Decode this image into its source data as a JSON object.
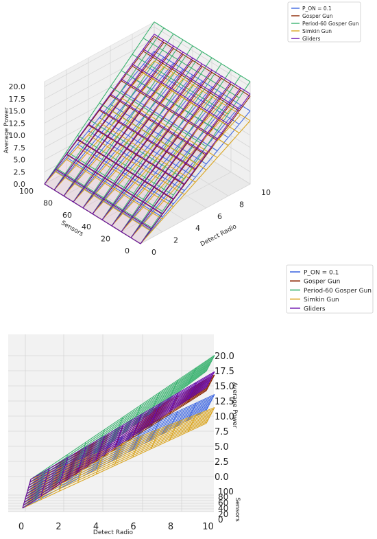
{
  "colors": {
    "P_ON = 0.1": "#4169e1",
    "Gosper Gun": "#8b2500",
    "Period-60 Gosper Gun": "#3cb371",
    "Simkin Gun": "#daa520",
    "Gliders": "#6a0dad",
    "grid": "#d6d6d6",
    "pane": "#f0f0f0",
    "pink": "#e8a0c8"
  },
  "chart_data": [
    {
      "type": "line",
      "projection": "3d-wireframe",
      "view": "perspective-azimuth-45",
      "xlabel": "Detect Radio",
      "ylabel": "Sensors",
      "zlabel": "Average Power",
      "xlim": [
        0,
        10
      ],
      "ylim": [
        0,
        100
      ],
      "zlim": [
        0,
        21
      ],
      "xticks": [
        "0",
        "2",
        "4",
        "6",
        "8",
        "10"
      ],
      "yticks": [
        "0",
        "20",
        "40",
        "60",
        "80",
        "100"
      ],
      "zticks": [
        "0.0",
        "2.5",
        "5.0",
        "7.5",
        "10.0",
        "12.5",
        "15.0",
        "17.5",
        "20.0"
      ],
      "grid": true,
      "legend_position": "top-right",
      "series": [
        {
          "name": "P_ON = 0.1",
          "slope_x": 1.5,
          "slope_y": 0.0
        },
        {
          "name": "Gosper Gun",
          "slope_x": 1.8,
          "slope_y": 0.0
        },
        {
          "name": "Period-60 Gosper Gun",
          "slope_x": 2.1,
          "slope_y": 0.0
        },
        {
          "name": "Simkin Gun",
          "slope_x": 1.3,
          "slope_y": 0.0
        },
        {
          "name": "Gliders",
          "slope_x": 1.85,
          "slope_y": 0.0
        }
      ]
    },
    {
      "type": "line",
      "projection": "3d-wireframe",
      "view": "front-detect-radio",
      "xlabel": "Detect Radio",
      "ylabel": "Sensors",
      "zlabel": "Average Power",
      "xlim": [
        0,
        10
      ],
      "ylim": [
        0,
        100
      ],
      "zlim": [
        0,
        21
      ],
      "xticks": [
        "0",
        "2",
        "4",
        "6",
        "8",
        "10"
      ],
      "yticks": [
        "0",
        "20",
        "40",
        "60",
        "80",
        "100"
      ],
      "zticks": [
        "0.0",
        "2.5",
        "5.0",
        "7.5",
        "10.0",
        "12.5",
        "15.0",
        "17.5",
        "20.0"
      ],
      "grid": true,
      "legend_position": "top-right",
      "series": [
        {
          "name": "P_ON = 0.1",
          "slope_x": 1.5,
          "slope_y": 0.0
        },
        {
          "name": "Gosper Gun",
          "slope_x": 1.8,
          "slope_y": 0.0
        },
        {
          "name": "Period-60 Gosper Gun",
          "slope_x": 2.1,
          "slope_y": 0.0
        },
        {
          "name": "Simkin Gun",
          "slope_x": 1.3,
          "slope_y": 0.0
        },
        {
          "name": "Gliders",
          "slope_x": 1.85,
          "slope_y": 0.0
        }
      ]
    }
  ]
}
